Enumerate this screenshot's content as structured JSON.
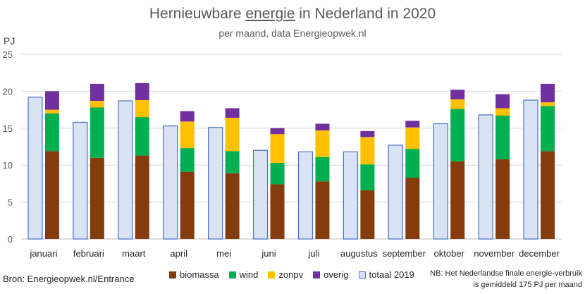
{
  "title": {
    "pre": "Hernieuwbare ",
    "underlined": "energie",
    "post": " in Nederland in 2020"
  },
  "subtitle": "per maand, data Energieopwek.nl",
  "source": "Bron: Energieopwek.nl/Entrance",
  "note": "NB: Het Nederlandse finale energie-verbruik is gemiddeld 175 PJ per maand",
  "colors": {
    "biomassa": "#843C0C",
    "wind": "#00B050",
    "zonpv": "#FFC000",
    "overig": "#7030A0",
    "totaal_fill": "#DAE3F3",
    "totaal_stroke": "#4472C4",
    "grid": "#D9D9D9"
  },
  "chart_data": {
    "type": "bar",
    "ylabel": "PJ",
    "ylim": [
      0,
      25
    ],
    "yticks": [
      0,
      5,
      10,
      15,
      20,
      25
    ],
    "grid": true,
    "legend_position": "bottom",
    "categories": [
      "januari",
      "februari",
      "maart",
      "april",
      "mei",
      "juni",
      "juli",
      "augustus",
      "september",
      "oktober",
      "november",
      "december"
    ],
    "series": [
      {
        "name": "totaal 2019",
        "key": "totaal_2019",
        "values": [
          19.2,
          15.8,
          18.7,
          15.3,
          15.1,
          12.0,
          11.8,
          11.8,
          12.7,
          15.6,
          16.8,
          18.8
        ]
      },
      {
        "name": "biomassa",
        "key": "biomassa",
        "values": [
          11.9,
          11.0,
          11.3,
          9.1,
          8.9,
          7.4,
          7.8,
          6.6,
          8.3,
          10.5,
          10.8,
          11.9
        ]
      },
      {
        "name": "wind",
        "key": "wind",
        "values": [
          5.1,
          6.8,
          5.2,
          3.2,
          3.0,
          2.9,
          3.3,
          3.5,
          3.9,
          7.1,
          5.9,
          6.1
        ]
      },
      {
        "name": "zonpv",
        "key": "zonpv",
        "values": [
          0.5,
          0.9,
          2.3,
          3.6,
          4.5,
          3.9,
          3.6,
          3.7,
          2.9,
          1.3,
          1.0,
          0.5
        ]
      },
      {
        "name": "overig",
        "key": "overig",
        "values": [
          2.5,
          2.3,
          2.3,
          1.4,
          1.3,
          0.8,
          0.9,
          0.8,
          0.9,
          1.3,
          1.9,
          2.5
        ]
      }
    ]
  }
}
